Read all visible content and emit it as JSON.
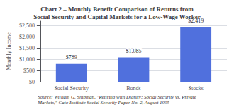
{
  "chart_data": {
    "type": "bar",
    "title": "Chart 2 – Monthly Benefit Comparison of Returns from\nSocial Security and Capital Markets for a Low-Wage Worker",
    "categories": [
      "Social Security",
      "Bonds",
      "Stocks"
    ],
    "values": [
      789,
      1085,
      2419
    ],
    "value_labels": [
      "$789",
      "$1,085",
      "$2,419"
    ],
    "data_labels": true,
    "ylabel": "Monthly Income",
    "ylim": [
      0,
      2700
    ],
    "yticks": [
      {
        "value": 0,
        "label": "$0"
      },
      {
        "value": 500,
        "label": "$500"
      },
      {
        "value": 1000,
        "label": "$1,000"
      },
      {
        "value": 1500,
        "label": "$1,500"
      },
      {
        "value": 2000,
        "label": "$2,000"
      },
      {
        "value": 2500,
        "label": "$2,500"
      }
    ],
    "grid": true,
    "annotations": [
      "Source: William G. Shipman, \"Retiring with Dignity: Social Security vs. Private\nMarkets,\" Cato Institute Social Security Paper No. 2, August 1995"
    ]
  }
}
